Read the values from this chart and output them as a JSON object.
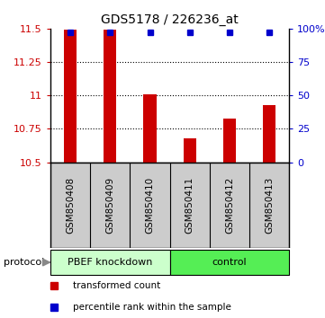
{
  "title": "GDS5178 / 226236_at",
  "samples": [
    "GSM850408",
    "GSM850409",
    "GSM850410",
    "GSM850411",
    "GSM850412",
    "GSM850413"
  ],
  "bar_values": [
    11.495,
    11.495,
    11.005,
    10.68,
    10.825,
    10.93
  ],
  "percentile_values": [
    97,
    97,
    97,
    97,
    97,
    97
  ],
  "bar_color": "#cc0000",
  "dot_color": "#0000cc",
  "ylim_left": [
    10.5,
    11.5
  ],
  "ylim_right": [
    0,
    100
  ],
  "yticks_left": [
    10.5,
    10.75,
    11.0,
    11.25,
    11.5
  ],
  "ytick_labels_left": [
    "10.5",
    "10.75",
    "11",
    "11.25",
    "11.5"
  ],
  "yticks_right": [
    0,
    25,
    50,
    75,
    100
  ],
  "ytick_labels_right": [
    "0",
    "25",
    "50",
    "75",
    "100%"
  ],
  "grid_values": [
    10.75,
    11.0,
    11.25
  ],
  "protocol_groups": [
    {
      "label": "PBEF knockdown",
      "start": 0,
      "end": 3,
      "color": "#ccffcc"
    },
    {
      "label": "control",
      "start": 3,
      "end": 6,
      "color": "#55ee55"
    }
  ],
  "protocol_label": "protocol",
  "legend_items": [
    {
      "color": "#cc0000",
      "label": "transformed count"
    },
    {
      "color": "#0000cc",
      "label": "percentile rank within the sample"
    }
  ],
  "background_color": "#ffffff",
  "plot_bg_color": "#ffffff",
  "tick_area_color": "#cccccc"
}
